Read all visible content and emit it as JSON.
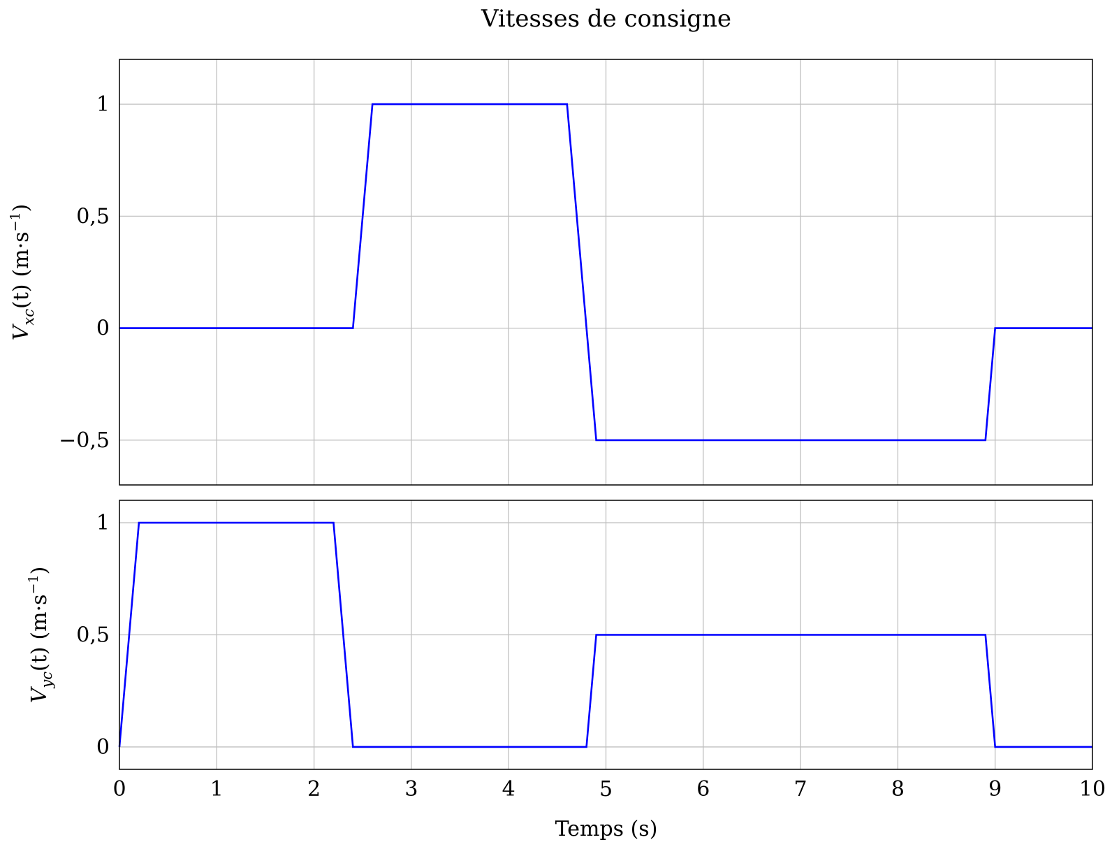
{
  "title": "Vitesses de consigne",
  "xlabel": "Temps (s)",
  "colors": {
    "series": "#0000ff",
    "grid": "#c0c0c0",
    "frame": "#000000"
  },
  "chart_data": [
    {
      "type": "line",
      "ylabel_var": "V",
      "ylabel_sub": "xc",
      "ylabel_arg": "(t)",
      "ylabel_unit": "(m·s",
      "ylabel_exp": "−1",
      "ylabel_close": ")",
      "xlim": [
        0,
        10
      ],
      "ylim": [
        -0.7,
        1.2
      ],
      "grid": true,
      "yticks": [
        -0.5,
        0,
        0.5,
        1
      ],
      "ytick_labels": [
        "−0,5",
        "0",
        "0,5",
        "1"
      ],
      "series": [
        {
          "x": [
            0,
            2.4,
            2.6,
            4.6,
            4.9,
            8.9,
            9,
            10
          ],
          "y": [
            0,
            0,
            1,
            1,
            -0.5,
            -0.5,
            0,
            0
          ]
        }
      ]
    },
    {
      "type": "line",
      "ylabel_var": "V",
      "ylabel_sub": "yc",
      "ylabel_arg": "(t)",
      "ylabel_unit": "(m·s",
      "ylabel_exp": "−1",
      "ylabel_close": ")",
      "xlim": [
        0,
        10
      ],
      "ylim": [
        -0.1,
        1.1
      ],
      "grid": true,
      "yticks": [
        0,
        0.5,
        1
      ],
      "ytick_labels": [
        "0",
        "0,5",
        "1"
      ],
      "xticks": [
        0,
        1,
        2,
        3,
        4,
        5,
        6,
        7,
        8,
        9,
        10
      ],
      "xtick_labels": [
        "0",
        "1",
        "2",
        "3",
        "4",
        "5",
        "6",
        "7",
        "8",
        "9",
        "10"
      ],
      "series": [
        {
          "x": [
            0,
            0.2,
            2.2,
            2.4,
            4.8,
            4.9,
            8.9,
            9,
            10
          ],
          "y": [
            0,
            1,
            1,
            0,
            0,
            0.5,
            0.5,
            0,
            0
          ]
        }
      ]
    }
  ]
}
